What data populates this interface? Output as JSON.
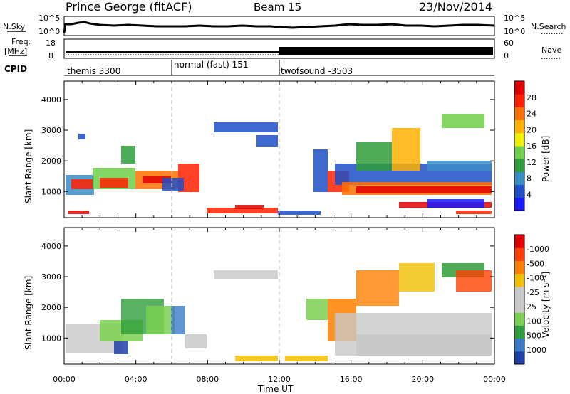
{
  "header": {
    "station": "Prince George (fitACF)",
    "beam": "Beam 15",
    "date": "23/Nov/2014"
  },
  "top_panels": {
    "nsky_label": "N.Sky",
    "nsearch_label": "N.Search",
    "power_tick_top": "10^5",
    "power_tick_bottom": "10^0",
    "freq_label_line1": "Freq.",
    "freq_label_line2": "[MHz]",
    "freq_tick_top": "18",
    "freq_tick_bottom": "8",
    "nave_label": "Nave",
    "nave_tick_top": "60",
    "nave_tick_bottom": "0",
    "cpid_label": "CPID",
    "cpid_segments": [
      "themis 3300",
      "normal (fast) 151",
      "twofsound -3503"
    ]
  },
  "chart_data": [
    {
      "type": "heatmap",
      "name": "power",
      "ylabel": "Slant Range [km]",
      "yticks": [
        "1000",
        "2000",
        "3000",
        "4000"
      ],
      "ylim": [
        150,
        4600
      ],
      "xlim": [
        0,
        24
      ],
      "colorbar_label": "Power [dB]",
      "colorbar_ticks": [
        "4",
        "8",
        "12",
        "16",
        "20",
        "24",
        "28"
      ],
      "colorbar_colors": [
        "#1a1aff",
        "#1f4fc8",
        "#3a8cc4",
        "#2f9e3c",
        "#6fd04a",
        "#f0f000",
        "#ffb000",
        "#ff7000",
        "#ff2000",
        "#e00000"
      ]
    },
    {
      "type": "heatmap",
      "name": "velocity",
      "ylabel": "Slant Range [km]",
      "yticks": [
        "1000",
        "2000",
        "3000",
        "4000"
      ],
      "ylim": [
        150,
        4600
      ],
      "xlim": [
        0,
        24
      ],
      "colorbar_label": "Velocity [m s⁻¹]",
      "colorbar_ticks": [
        "1000",
        "500",
        "100",
        "25",
        "-25",
        "-100",
        "-500",
        "-1000"
      ],
      "colorbar_colors": [
        "#2040a8",
        "#3a7ac8",
        "#2f9e3c",
        "#7ad050",
        "#c8c8c8",
        "#c8c8c8",
        "#f0c000",
        "#ff8000",
        "#ff4000",
        "#e00000"
      ]
    }
  ],
  "x_axis": {
    "ticks": [
      "00:00",
      "04:00",
      "08:00",
      "12:00",
      "16:00",
      "20:00",
      "00:00"
    ],
    "label": "Time UT"
  }
}
